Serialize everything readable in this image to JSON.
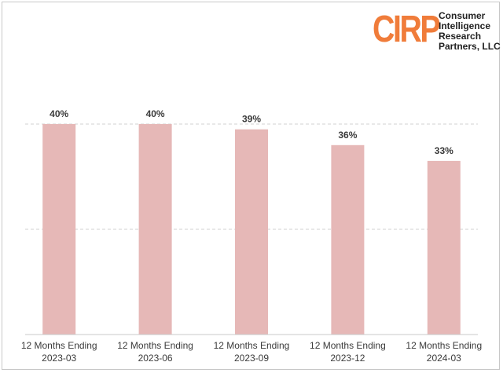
{
  "logo": {
    "mark": "CIRP",
    "lines": [
      "Consumer",
      "Intelligence",
      "Research",
      "Partners, LLC"
    ],
    "mark_color": "#f07c3a"
  },
  "colors": {
    "bar": "#e6b8b7",
    "gridline": "#d0d0d0",
    "axis": "#c8c8c8",
    "text": "#3a3a3a"
  },
  "chart_data": {
    "type": "bar",
    "categories": [
      [
        "12 Months Ending",
        "2023-03"
      ],
      [
        "12 Months Ending",
        "2023-06"
      ],
      [
        "12 Months Ending",
        "2023-09"
      ],
      [
        "12 Months Ending",
        "2023-12"
      ],
      [
        "12 Months Ending",
        "2024-03"
      ]
    ],
    "values": [
      40,
      40,
      39,
      36,
      33
    ],
    "data_labels": [
      "40%",
      "40%",
      "39%",
      "36%",
      "33%"
    ],
    "ylim": [
      0,
      50
    ],
    "grid": true,
    "gridlines_at": [
      20,
      40
    ],
    "legend": "none"
  }
}
